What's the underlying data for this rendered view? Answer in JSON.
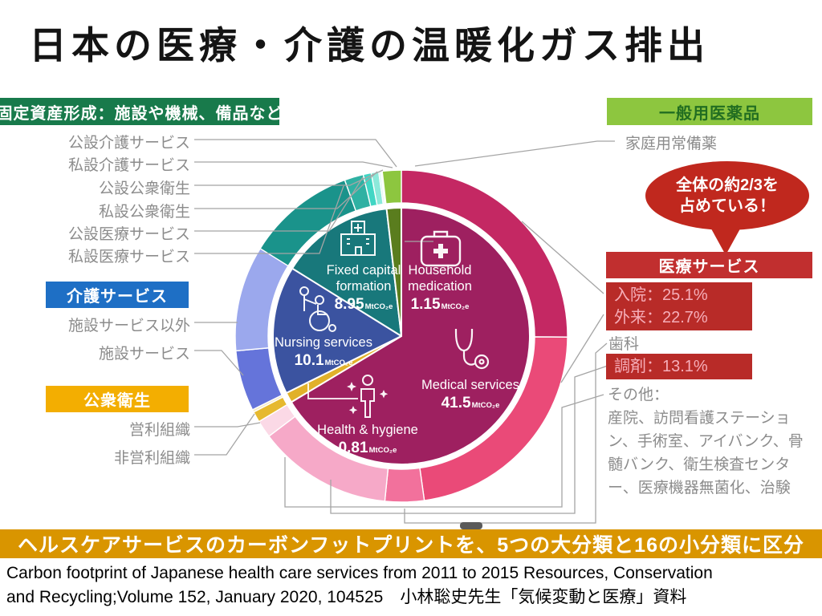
{
  "title": "日本の医療・介護の温暖化ガス排出",
  "callouts": {
    "fixed_capital": {
      "header": "固定資産形成：施設や機械、備品など",
      "items": [
        "公設介護サービス",
        "私設介護サービス",
        "公設公衆衛生",
        "私設公衆衛生",
        "公設医療サービス",
        "私設医療サービス"
      ]
    },
    "nursing": {
      "header": "介護サービス",
      "items": [
        "施設サービス以外",
        "施設サービス"
      ]
    },
    "public_health": {
      "header": "公衆衛生",
      "items": [
        "営利組織",
        "非営利組織"
      ]
    },
    "otc": {
      "header": "一般用医薬品",
      "items": [
        "家庭用常備薬"
      ]
    },
    "medical": {
      "header": "医療サービス",
      "inpatient": "入院：25.1%",
      "outpatient": "外来：22.7%",
      "dental": "歯科",
      "pharmacy": "調剤：13.1%",
      "others_title": "その他：",
      "others_body": "産院、訪問看護ステーション、手術室、アイバンク、骨髄バンク、衛生検査センター、医療機器無菌化、治験"
    },
    "bubble": {
      "line1": "全体の約2/3を",
      "line2": "占めている！"
    }
  },
  "banner": "ヘルスケアサービスのカーボンフットプリントを、5つの大分類と16の小分類に区分",
  "caption_line1": "Carbon footprint of Japanese health care services from 2011 to 2015 Resources, Conservation",
  "caption_line2": "and Recycling;Volume 152, January 2020, 104525　小林聡史先生「気候変動と医療」資料",
  "chart_data": {
    "type": "pie",
    "subtype": "two-ring sunburst donut",
    "unit": "MtCO₂e",
    "start_angle_deg": 0,
    "direction": "clockwise",
    "categories": [
      {
        "name": "Medical services",
        "name_ja": "医療サービス",
        "value_mt": 41.5,
        "display_value": "41.5",
        "color": "#9E2060",
        "subs": [
          {
            "name": "入院",
            "share_pct": 25.1,
            "shown": true,
            "color": "#C42863"
          },
          {
            "name": "外来",
            "share_pct": 22.7,
            "shown": true,
            "color": "#EA4A78"
          },
          {
            "name": "歯科",
            "share_pct": 3.8,
            "shown": false,
            "color": "#F2719C"
          },
          {
            "name": "調剤",
            "share_pct": 13.1,
            "shown": true,
            "color": "#F6A9C8"
          },
          {
            "name": "その他",
            "share_pct": 1.7,
            "shown": false,
            "color": "#FBD9E6"
          }
        ]
      },
      {
        "name": "Health & hygiene",
        "name_ja": "公衆衛生",
        "value_mt": 0.81,
        "display_value": "0.81",
        "color": "#E1B12A",
        "subs": [
          {
            "name": "営利組織",
            "share_pct": 1.05,
            "shown": false,
            "color": "#E6B92F"
          },
          {
            "name": "非営利組織",
            "share_pct": 0.25,
            "shown": false,
            "color": "#F6ECC4"
          }
        ]
      },
      {
        "name": "Nursing services",
        "name_ja": "介護サービス",
        "value_mt": 10.1,
        "display_value": "10.1",
        "color": "#3B53A0",
        "subs": [
          {
            "name": "施設サービス",
            "share_pct": 5.9,
            "shown": false,
            "color": "#6574DA"
          },
          {
            "name": "施設サービス以外",
            "share_pct": 10.26,
            "shown": false,
            "color": "#9BA8ED"
          }
        ]
      },
      {
        "name": "Fixed capital formation",
        "name_ja": "固定資産形成",
        "value_mt": 8.95,
        "display_value": "8.95",
        "color": "#18787B",
        "subs": [
          {
            "name": "私設医療サービス",
            "share_pct": 10.9,
            "shown": false,
            "color": "#1A938B"
          },
          {
            "name": "公設医療サービス",
            "share_pct": 1.9,
            "shown": false,
            "color": "#2FB1A3"
          },
          {
            "name": "私設公衆衛生",
            "share_pct": 0.8,
            "shown": false,
            "color": "#41D6C4"
          },
          {
            "name": "公設公衆衛生",
            "share_pct": 0.75,
            "shown": false,
            "color": "#8CE9DA"
          },
          {
            "name": "私設介護サービス",
            "share_pct": 0.19,
            "shown": false,
            "color": "#CFF4EC"
          },
          {
            "name": "公設介護サービス",
            "share_pct": 0.16,
            "shown": false,
            "color": "#EAFBF7"
          }
        ]
      },
      {
        "name": "Household medication",
        "name_ja": "一般用医薬品",
        "value_mt": 1.15,
        "display_value": "1.15",
        "color": "#5A7D1E",
        "subs": [
          {
            "name": "家庭用常備薬",
            "share_pct": 1.84,
            "shown": false,
            "color": "#8DC63F"
          }
        ]
      }
    ]
  }
}
